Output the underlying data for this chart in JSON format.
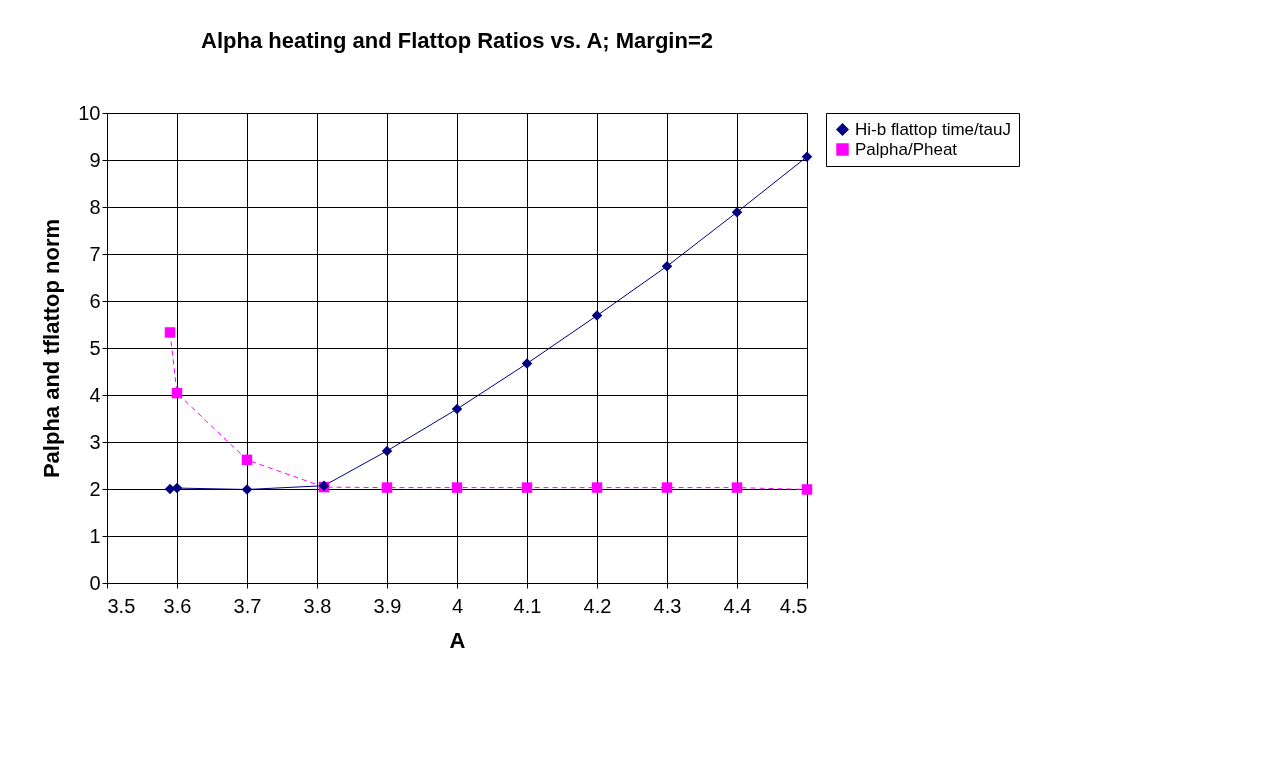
{
  "chart_data": {
    "type": "line",
    "title": "Alpha heating and Flattop Ratios vs. A; Margin=2",
    "xlabel": "A",
    "ylabel": "Palpha and tflattop norm",
    "x": [
      3.59,
      3.6,
      3.7,
      3.81,
      3.9,
      4.0,
      4.1,
      4.2,
      4.3,
      4.4,
      4.5
    ],
    "series": [
      {
        "name": "Hi-b flattop time/tauJ",
        "color": "#000080",
        "marker": "diamond",
        "line_style": "solid",
        "values": [
          2.0,
          2.02,
          1.99,
          2.07,
          2.81,
          3.7,
          4.67,
          5.69,
          6.74,
          7.89,
          9.07
        ]
      },
      {
        "name": "Palpha/Pheat",
        "color": "#ff00ff",
        "marker": "square",
        "line_style": "dashed",
        "values": [
          5.33,
          4.04,
          2.62,
          2.04,
          2.03,
          2.03,
          2.03,
          2.03,
          2.03,
          2.03,
          1.99
        ]
      }
    ],
    "xlim": [
      3.5,
      4.5
    ],
    "xticks": [
      3.5,
      3.6,
      3.7,
      3.8,
      3.9,
      4,
      4.1,
      4.2,
      4.3,
      4.4,
      4.5
    ],
    "ylim": [
      0,
      10
    ],
    "yticks": [
      0,
      1,
      2,
      3,
      4,
      5,
      6,
      7,
      8,
      9,
      10
    ],
    "grid": true,
    "legend": "right"
  }
}
